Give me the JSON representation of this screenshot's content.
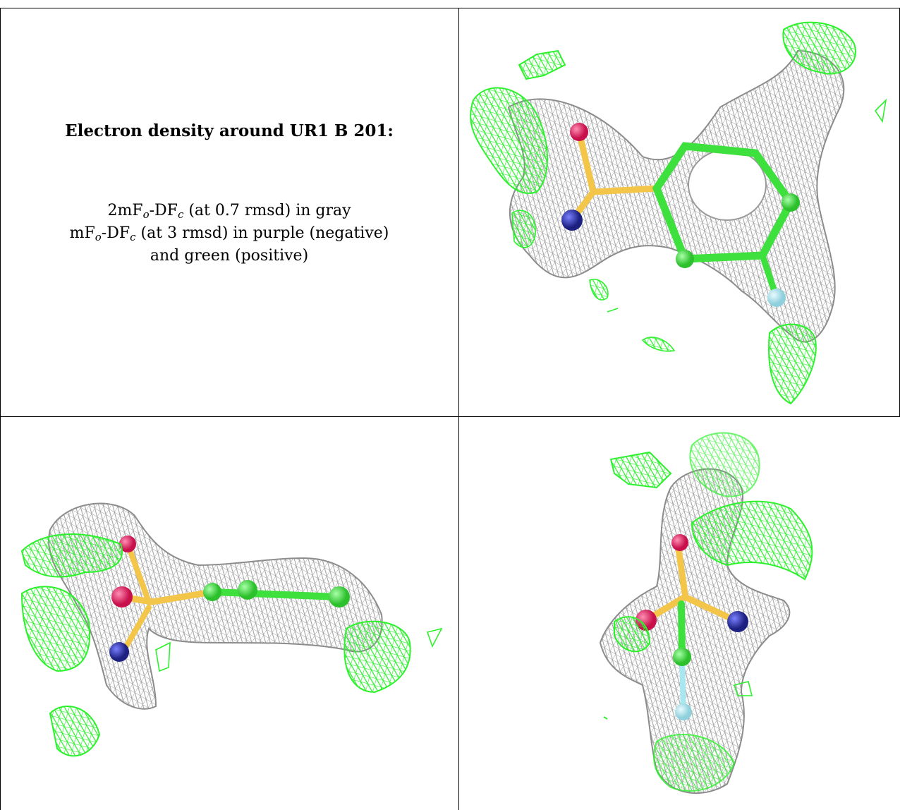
{
  "caption": {
    "title": "Electron density around UR1 B 201:",
    "line1_a": "2mF",
    "line1_sub_o": "o",
    "line1_b": "-DF",
    "line1_sub_c": "c",
    "line1_c": " (at 0.7 rmsd) in gray",
    "line2_a": "mF",
    "line2_sub_o": "o",
    "line2_b": "-DF",
    "line2_sub_c": "c",
    "line2_c": " (at 3 rmsd) in purple (negative)",
    "line3": "and green (positive)"
  },
  "colors": {
    "gray_density": "#9c9c9c",
    "positive_density": "#2ef12e",
    "carbon_ligand": "#3ee03e",
    "sulfur": "#f3c64a",
    "oxygen": "#e8175d",
    "nitrogen": "#2b30b0",
    "fluorine": "#a8e6f0"
  }
}
